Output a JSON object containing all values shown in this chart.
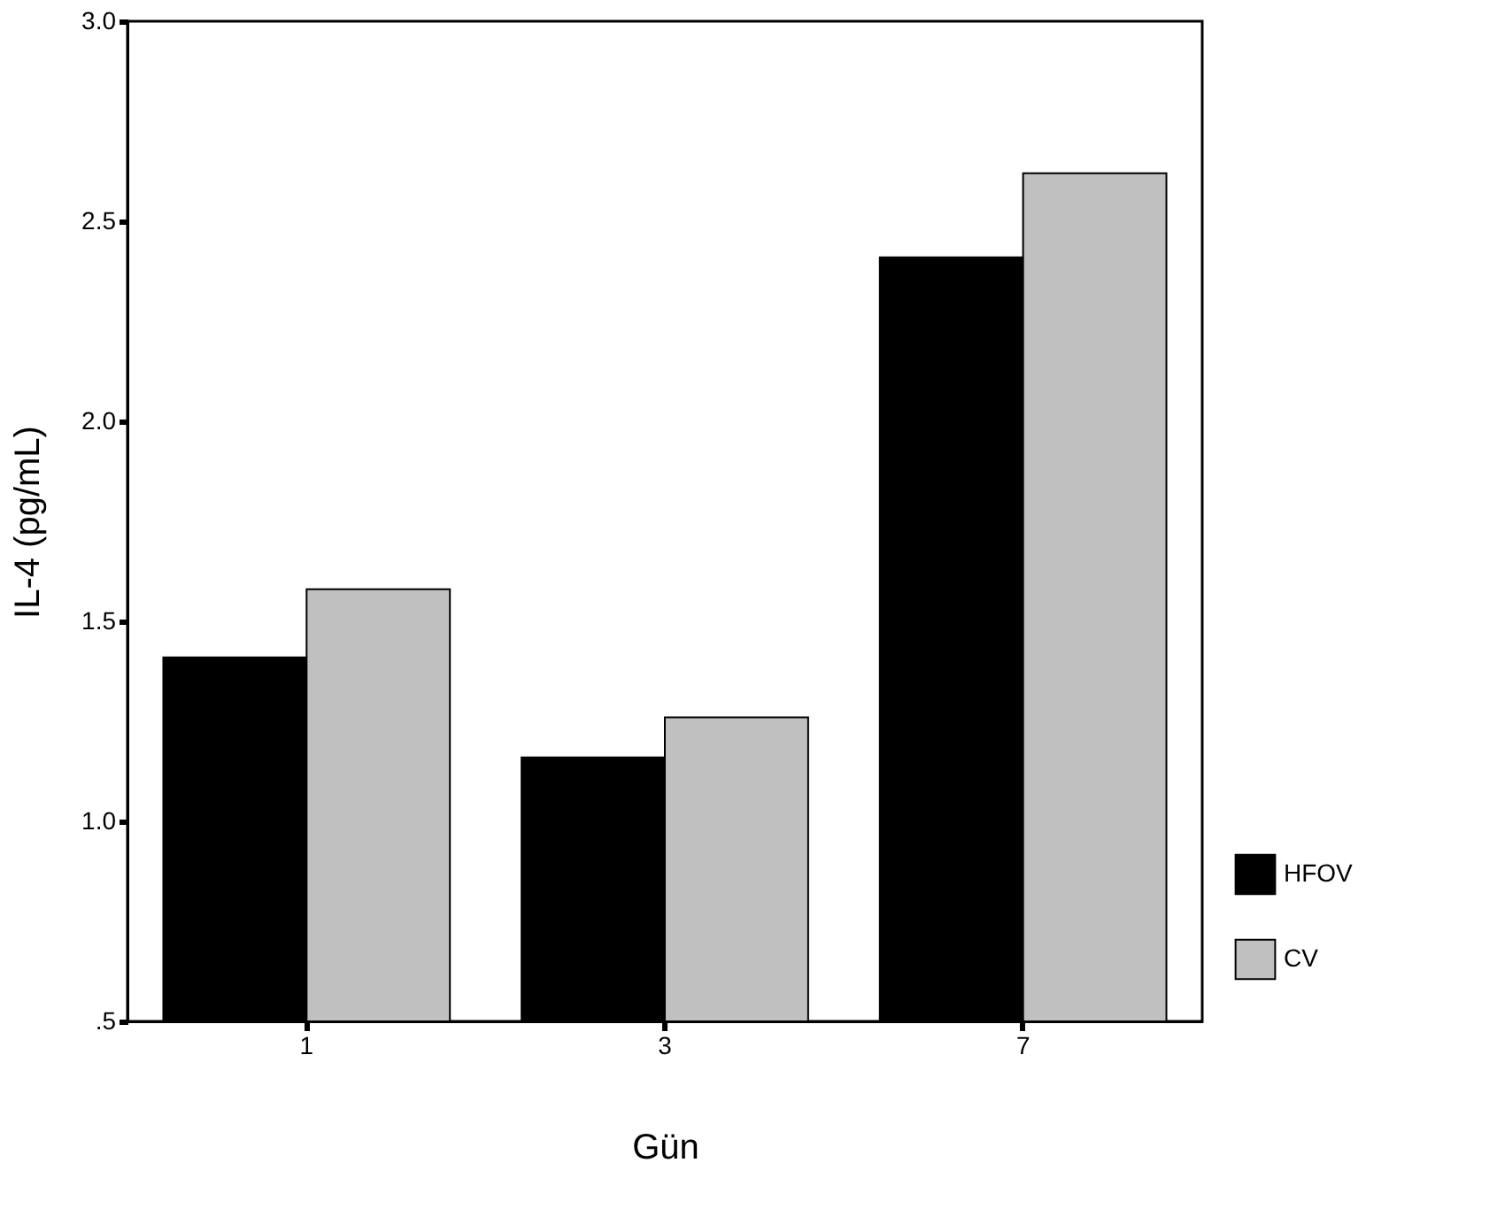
{
  "chart_data": {
    "type": "bar",
    "xlabel": "Gün",
    "ylabel": "IL-4 (pg/mL)",
    "categories": [
      "1",
      "3",
      "7"
    ],
    "series": [
      {
        "name": "HFOV",
        "color": "#000000",
        "values": [
          1.41,
          1.16,
          2.41
        ]
      },
      {
        "name": "CV",
        "color": "#c0c0c0",
        "values": [
          1.58,
          1.26,
          2.62
        ]
      }
    ],
    "ylim": [
      0.5,
      3.0
    ],
    "yticks": [
      {
        "value": 0.5,
        "label": ".5"
      },
      {
        "value": 1.0,
        "label": "1.0"
      },
      {
        "value": 1.5,
        "label": "1.5"
      },
      {
        "value": 2.0,
        "label": "2.0"
      },
      {
        "value": 2.5,
        "label": "2.5"
      },
      {
        "value": 3.0,
        "label": "3.0"
      }
    ],
    "grid": false,
    "legend": "right bottom"
  }
}
